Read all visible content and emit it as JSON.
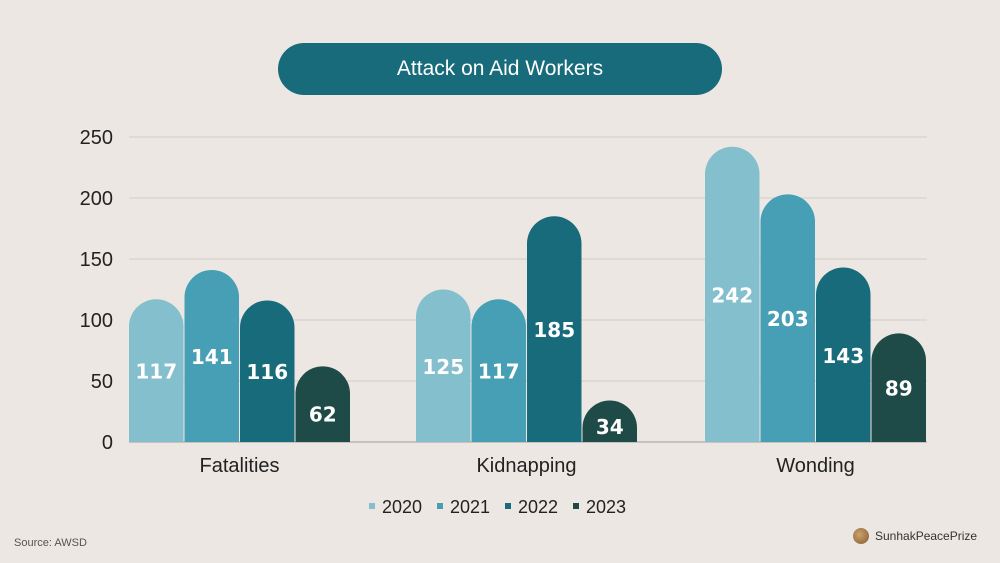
{
  "chart_data": {
    "type": "bar",
    "title": "Attack on Aid Workers",
    "categories": [
      "Fatalities",
      "Kidnapping",
      "Wonding"
    ],
    "series": [
      {
        "name": "2020",
        "color": "#83bfcc",
        "values": [
          117,
          125,
          242
        ]
      },
      {
        "name": "2021",
        "color": "#479fb6",
        "values": [
          141,
          117,
          203
        ]
      },
      {
        "name": "2022",
        "color": "#176b7a",
        "values": [
          116,
          185,
          143
        ]
      },
      {
        "name": "2023",
        "color": "#1e4a47",
        "values": [
          62,
          34,
          89
        ]
      }
    ],
    "yticks": [
      0,
      50,
      100,
      150,
      200,
      250
    ],
    "ylim": [
      0,
      250
    ],
    "grid": true,
    "legend": "bottom-center",
    "data_labels": true
  },
  "source": "Source: AWSD",
  "brand": "SunhakPeacePrize"
}
